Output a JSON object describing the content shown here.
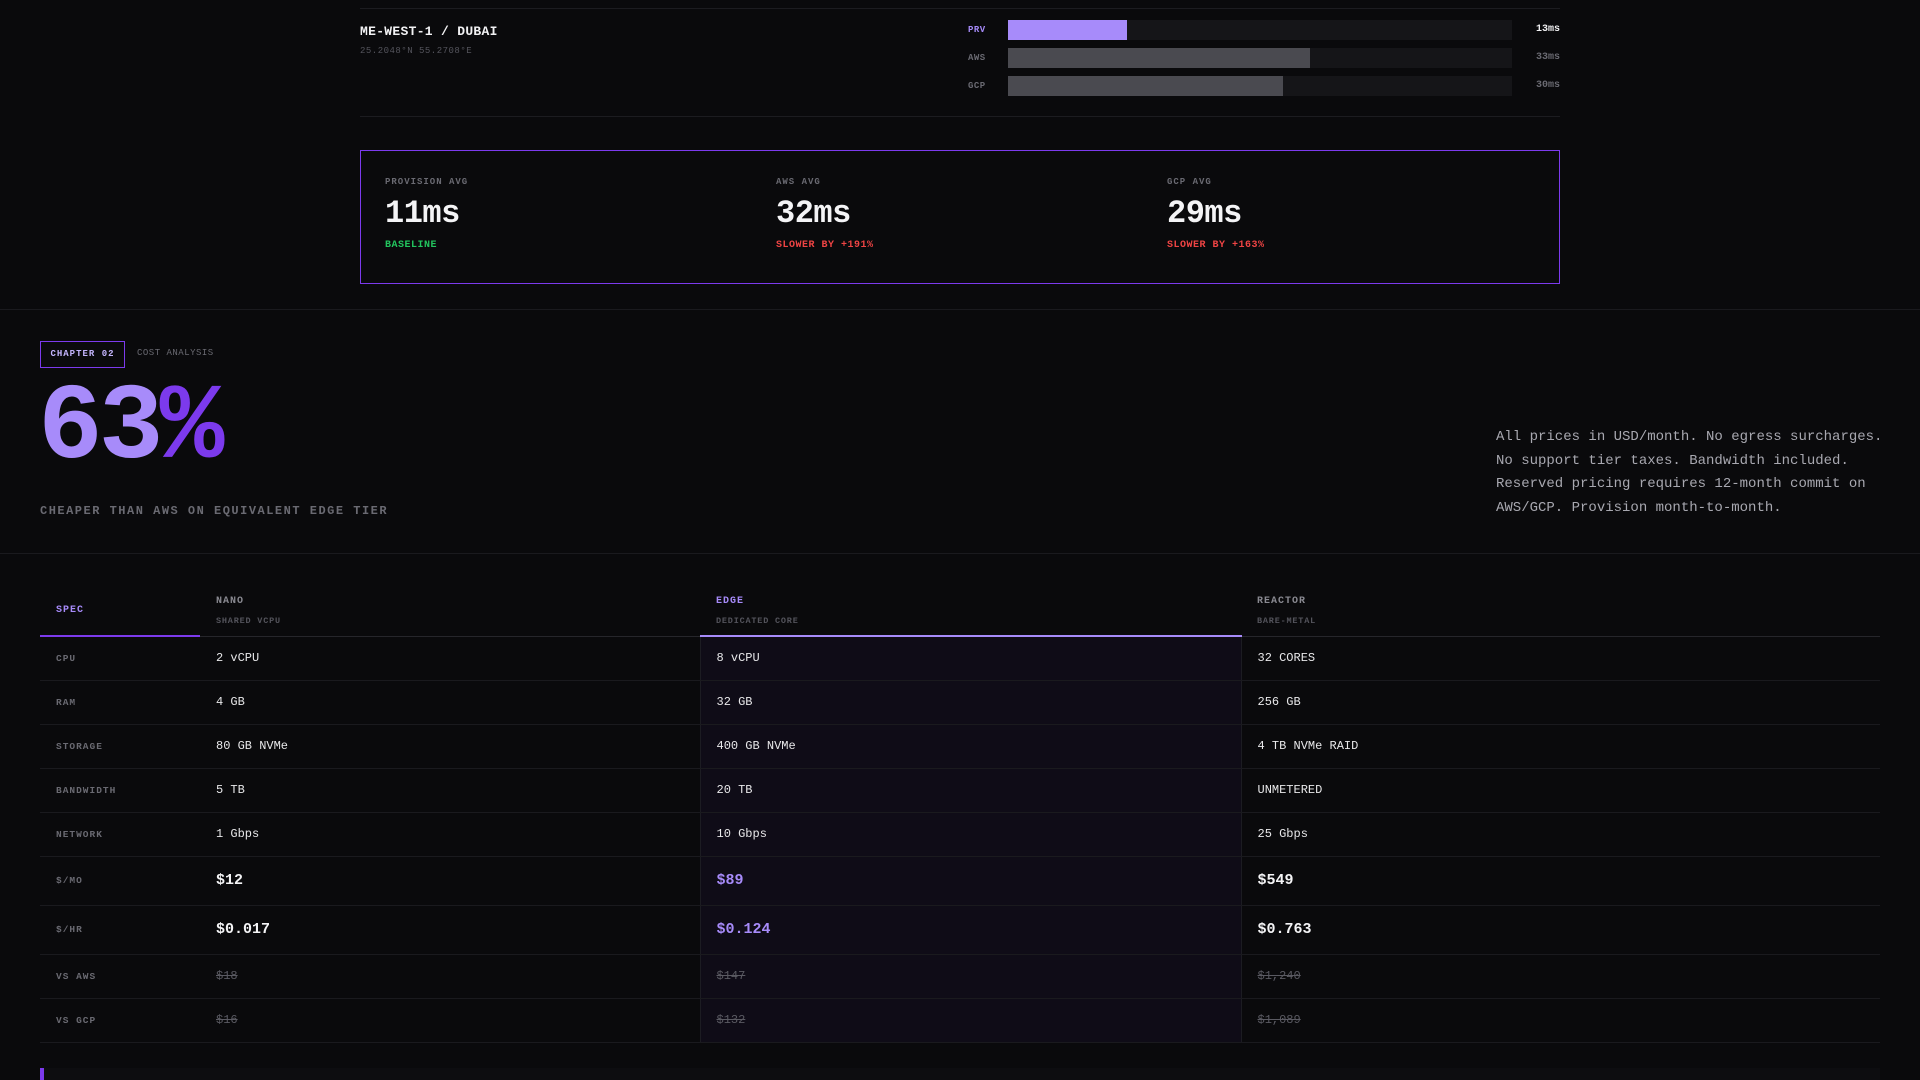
{
  "region": {
    "name": "ME-WEST-1 / DUBAI",
    "coords": "25.2048°N 55.2708°E",
    "bars": [
      {
        "label": "PRV",
        "value": "13ms",
        "ms": 13,
        "primary": true
      },
      {
        "label": "AWS",
        "value": "33ms",
        "ms": 33,
        "primary": false
      },
      {
        "label": "GCP",
        "value": "30ms",
        "ms": 30,
        "primary": false
      }
    ],
    "bar_scale_ms": 55
  },
  "averages": [
    {
      "label": "PROVISION AVG",
      "value": "11ms",
      "note": "BASELINE",
      "tone": "good"
    },
    {
      "label": "AWS AVG",
      "value": "32ms",
      "note": "SLOWER BY +191%",
      "tone": "bad"
    },
    {
      "label": "GCP AVG",
      "value": "29ms",
      "note": "SLOWER BY +163%",
      "tone": "bad"
    }
  ],
  "chapter": {
    "tag": "CHAPTER 02",
    "subtitle": "COST ANALYSIS",
    "stat_number": "63",
    "stat_suffix": "%",
    "caption": "CHEAPER THAN AWS ON EQUIVALENT EDGE TIER",
    "note": "All prices in USD/month. No egress surcharges. No support tier taxes. Bandwidth included. Reserved pricing requires 12-month commit on AWS/GCP. Provision month-to-month."
  },
  "table": {
    "spec_header": "SPEC",
    "tiers": [
      {
        "name": "NANO",
        "sub": "SHARED VCPU"
      },
      {
        "name": "EDGE",
        "sub": "DEDICATED CORE"
      },
      {
        "name": "REACTOR",
        "sub": "BARE-METAL"
      }
    ],
    "rows": [
      {
        "spec": "CPU",
        "values": [
          "2 vCPU",
          "8 vCPU",
          "32 CORES"
        ],
        "kind": "plain"
      },
      {
        "spec": "RAM",
        "values": [
          "4 GB",
          "32 GB",
          "256 GB"
        ],
        "kind": "plain"
      },
      {
        "spec": "STORAGE",
        "values": [
          "80 GB NVMe",
          "400 GB NVMe",
          "4 TB NVMe RAID"
        ],
        "kind": "plain"
      },
      {
        "spec": "BANDWIDTH",
        "values": [
          "5 TB",
          "20 TB",
          "UNMETERED"
        ],
        "kind": "plain"
      },
      {
        "spec": "NETWORK",
        "values": [
          "1 Gbps",
          "10 Gbps",
          "25 Gbps"
        ],
        "kind": "plain"
      },
      {
        "spec": "$/MO",
        "values": [
          "$12",
          "$89",
          "$549"
        ],
        "kind": "price"
      },
      {
        "spec": "$/HR",
        "values": [
          "$0.017",
          "$0.124",
          "$0.763"
        ],
        "kind": "price"
      },
      {
        "spec": "VS AWS",
        "values": [
          "$18",
          "$147",
          "$1,240"
        ],
        "kind": "strike"
      },
      {
        "spec": "VS GCP",
        "values": [
          "$16",
          "$132",
          "$1,089"
        ],
        "kind": "strike"
      }
    ]
  },
  "colors": {
    "accent": "#7c3aed",
    "accent_light": "#a78bfa",
    "good": "#22c55e",
    "bad": "#ef4444"
  }
}
